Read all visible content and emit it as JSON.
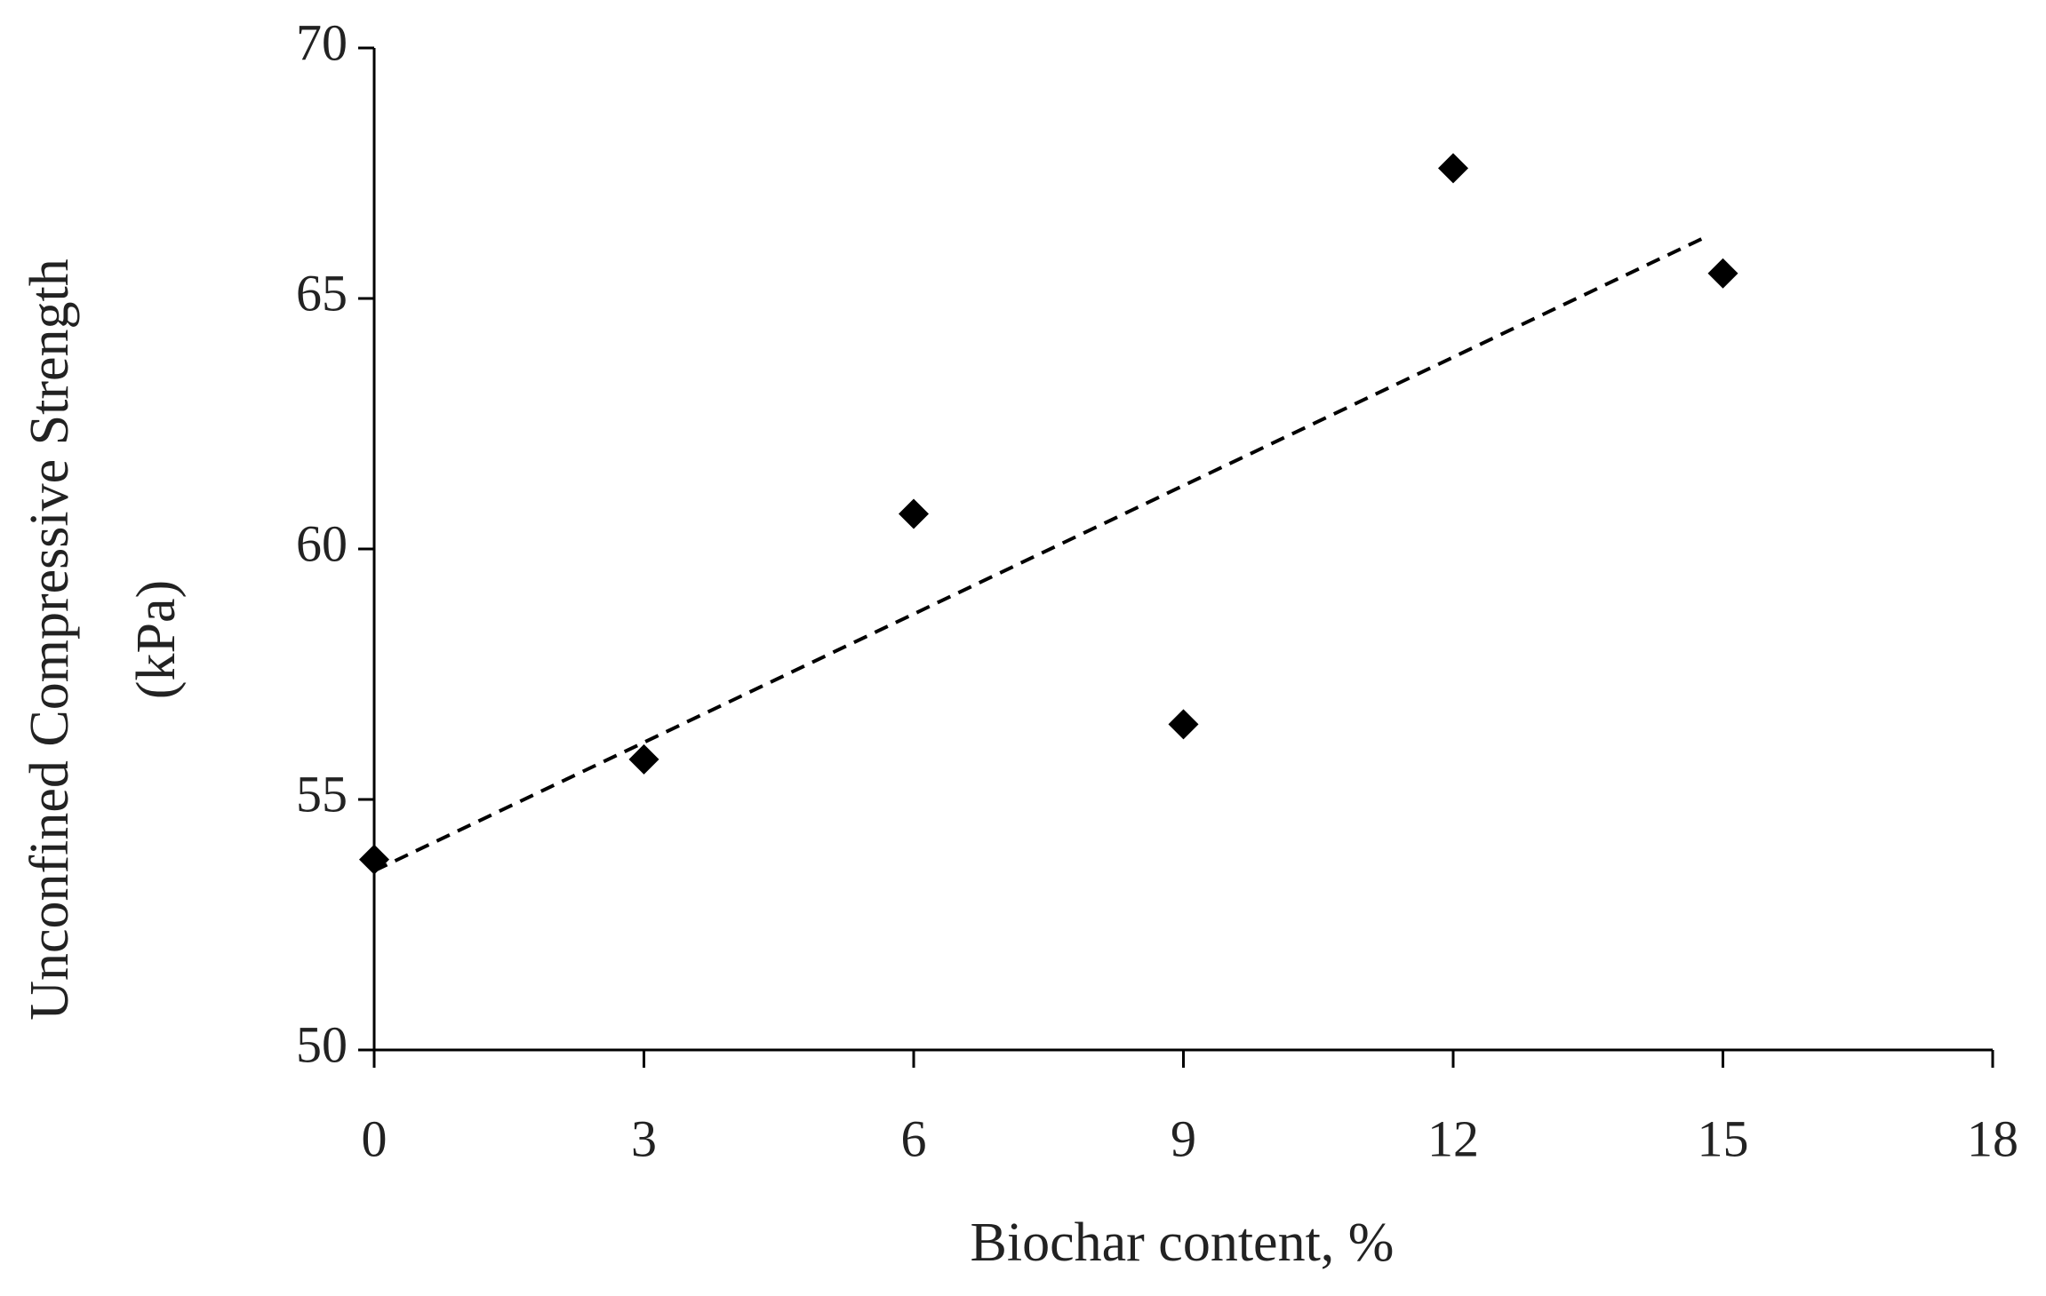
{
  "chart_data": {
    "type": "scatter",
    "xlabel": "Biochar content, %",
    "ylabel": [
      "Unconfined Compressive Strength",
      "(kPa)"
    ],
    "x": [
      0,
      3,
      6,
      9,
      12,
      15
    ],
    "series": [
      {
        "color": "#000000",
        "values": [
          53.8,
          55.8,
          60.7,
          56.5,
          67.6,
          65.5
        ]
      }
    ],
    "trendline": "linear",
    "xlim": [
      0,
      18
    ],
    "xticks": [
      0,
      3,
      6,
      9,
      12,
      15,
      18
    ],
    "ylim": [
      50,
      70
    ],
    "yticks": [
      50,
      55,
      60,
      65,
      70
    ]
  }
}
